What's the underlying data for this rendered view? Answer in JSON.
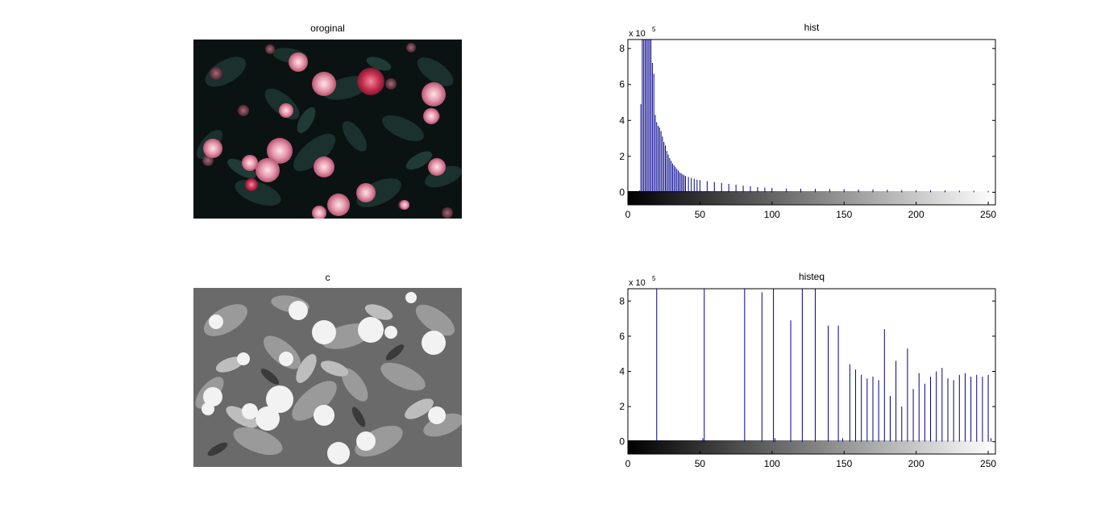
{
  "panels": {
    "original": {
      "title": "oroginal"
    },
    "gray": {
      "title": "c"
    }
  },
  "chart_data": [
    {
      "type": "bar",
      "title": "hist",
      "exponent_label": "x 10",
      "exponent": "5",
      "xlim": [
        0,
        255
      ],
      "ylim": [
        -0.7,
        8.5
      ],
      "xticks": [
        0,
        50,
        100,
        150,
        200,
        250
      ],
      "yticks": [
        0,
        2,
        4,
        6,
        8
      ],
      "colorbar": "grayscale 0-255",
      "bar_color": "#00008b",
      "x": [
        0,
        1,
        2,
        3,
        4,
        5,
        6,
        7,
        8,
        9,
        10,
        11,
        12,
        13,
        14,
        15,
        16,
        17,
        18,
        19,
        20,
        21,
        22,
        23,
        24,
        25,
        26,
        27,
        28,
        29,
        30,
        31,
        32,
        33,
        34,
        35,
        36,
        37,
        38,
        39,
        40,
        42,
        44,
        46,
        48,
        50,
        55,
        60,
        65,
        70,
        75,
        80,
        85,
        90,
        95,
        100,
        110,
        120,
        130,
        140,
        150,
        160,
        170,
        180,
        190,
        200,
        210,
        220,
        230,
        240,
        250,
        255
      ],
      "values": [
        0,
        0,
        0,
        0,
        0,
        0,
        0,
        0,
        0.1,
        4.9,
        8.5,
        8.5,
        8.5,
        8.5,
        8.5,
        8.5,
        8.5,
        7.2,
        6.6,
        4.3,
        3.9,
        3.7,
        3.6,
        3.4,
        3.1,
        2.8,
        2.6,
        2.3,
        2.1,
        1.9,
        1.75,
        1.6,
        1.5,
        1.4,
        1.3,
        1.2,
        1.1,
        1.05,
        1.0,
        0.95,
        0.9,
        0.85,
        0.8,
        0.75,
        0.7,
        0.68,
        0.62,
        0.57,
        0.52,
        0.47,
        0.42,
        0.37,
        0.33,
        0.29,
        0.26,
        0.24,
        0.21,
        0.2,
        0.19,
        0.18,
        0.17,
        0.16,
        0.15,
        0.14,
        0.13,
        0.12,
        0.11,
        0.1,
        0.09,
        0.08,
        0.07,
        0.06
      ]
    },
    {
      "type": "bar",
      "title": "histeq",
      "exponent_label": "x 10",
      "exponent": "5",
      "xlim": [
        0,
        255
      ],
      "ylim": [
        -0.7,
        8.7
      ],
      "xticks": [
        0,
        50,
        100,
        150,
        200,
        250
      ],
      "yticks": [
        0,
        2,
        4,
        6,
        8
      ],
      "colorbar": "grayscale 0-255",
      "bar_color": "#00008b",
      "x": [
        20,
        52,
        53,
        81,
        93,
        101,
        102,
        113,
        121,
        130,
        139,
        146,
        149,
        154,
        158,
        162,
        166,
        170,
        174,
        178,
        182,
        186,
        190,
        194,
        198,
        202,
        206,
        210,
        214,
        218,
        222,
        226,
        230,
        234,
        238,
        242,
        246,
        250,
        252
      ],
      "values": [
        8.7,
        0.2,
        8.7,
        8.7,
        8.5,
        8.7,
        0.2,
        6.9,
        8.7,
        8.7,
        6.6,
        6.6,
        0.2,
        4.4,
        4.1,
        3.8,
        3.6,
        3.7,
        3.5,
        6.4,
        2.6,
        4.6,
        2.0,
        5.3,
        3.0,
        3.9,
        3.3,
        3.7,
        4.0,
        4.2,
        3.6,
        3.5,
        3.8,
        3.9,
        3.7,
        3.8,
        3.7,
        3.8,
        0.2
      ]
    }
  ]
}
